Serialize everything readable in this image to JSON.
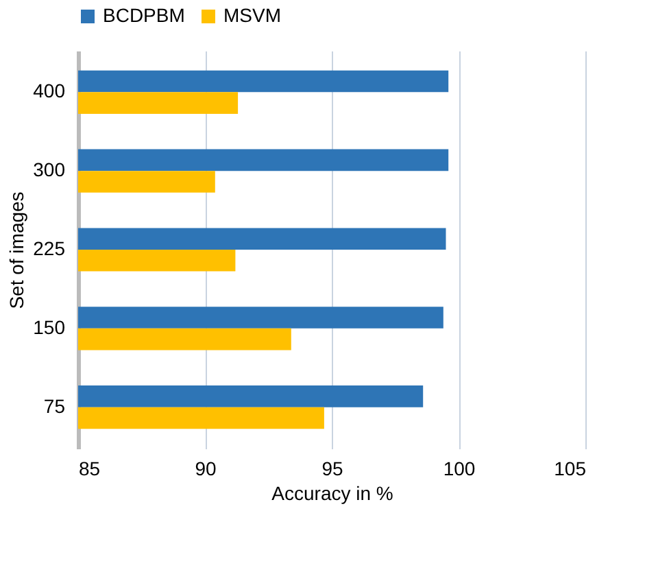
{
  "chart_data": {
    "type": "bar",
    "orientation": "horizontal",
    "xlabel": "Accuracy in %",
    "ylabel": "Set of images",
    "categories": [
      "400",
      "300",
      "225",
      "150",
      "75"
    ],
    "series": [
      {
        "name": "BCDPBM",
        "color": "#2e75b6",
        "values": [
          99.6,
          99.6,
          99.5,
          99.4,
          98.6
        ]
      },
      {
        "name": "MSVM",
        "color": "#ffc000",
        "values": [
          91.3,
          90.4,
          91.2,
          93.4,
          94.7
        ]
      }
    ],
    "xlim": [
      85,
      105
    ],
    "xticks": [
      85,
      90,
      95,
      100,
      105
    ],
    "grid": "x",
    "legend": "top"
  }
}
